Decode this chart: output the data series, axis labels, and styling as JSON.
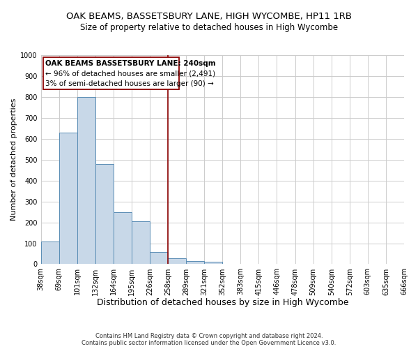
{
  "title": "OAK BEAMS, BASSETSBURY LANE, HIGH WYCOMBE, HP11 1RB",
  "subtitle": "Size of property relative to detached houses in High Wycombe",
  "xlabel": "Distribution of detached houses by size in High Wycombe",
  "ylabel": "Number of detached properties",
  "footer_line1": "Contains HM Land Registry data © Crown copyright and database right 2024.",
  "footer_line2": "Contains public sector information licensed under the Open Government Licence v3.0.",
  "annotation_line1": "OAK BEAMS BASSETSBURY LANE: 240sqm",
  "annotation_line2": "← 96% of detached houses are smaller (2,491)",
  "annotation_line3": "3% of semi-detached houses are larger (90) →",
  "bar_values": [
    110,
    630,
    800,
    480,
    250,
    205,
    60,
    28,
    15,
    10,
    0,
    0,
    0,
    0,
    0,
    0,
    0,
    0,
    0,
    0
  ],
  "bin_labels": [
    "38sqm",
    "69sqm",
    "101sqm",
    "132sqm",
    "164sqm",
    "195sqm",
    "226sqm",
    "258sqm",
    "289sqm",
    "321sqm",
    "352sqm",
    "383sqm",
    "415sqm",
    "446sqm",
    "478sqm",
    "509sqm",
    "540sqm",
    "572sqm",
    "603sqm",
    "635sqm",
    "666sqm"
  ],
  "ylim": [
    0,
    1000
  ],
  "yticks": [
    0,
    100,
    200,
    300,
    400,
    500,
    600,
    700,
    800,
    900,
    1000
  ],
  "bar_color": "#c8d8e8",
  "bar_edge_color": "#5a8db5",
  "vline_x_index": 6.5,
  "vline_color": "#8b0000",
  "annotation_box_edge_color": "#8b0000",
  "background_color": "#ffffff",
  "grid_color": "#cccccc",
  "title_fontsize": 9.5,
  "subtitle_fontsize": 8.5,
  "xlabel_fontsize": 9,
  "ylabel_fontsize": 8,
  "tick_fontsize": 7,
  "annotation_fontsize": 7.5,
  "footer_fontsize": 6.0
}
